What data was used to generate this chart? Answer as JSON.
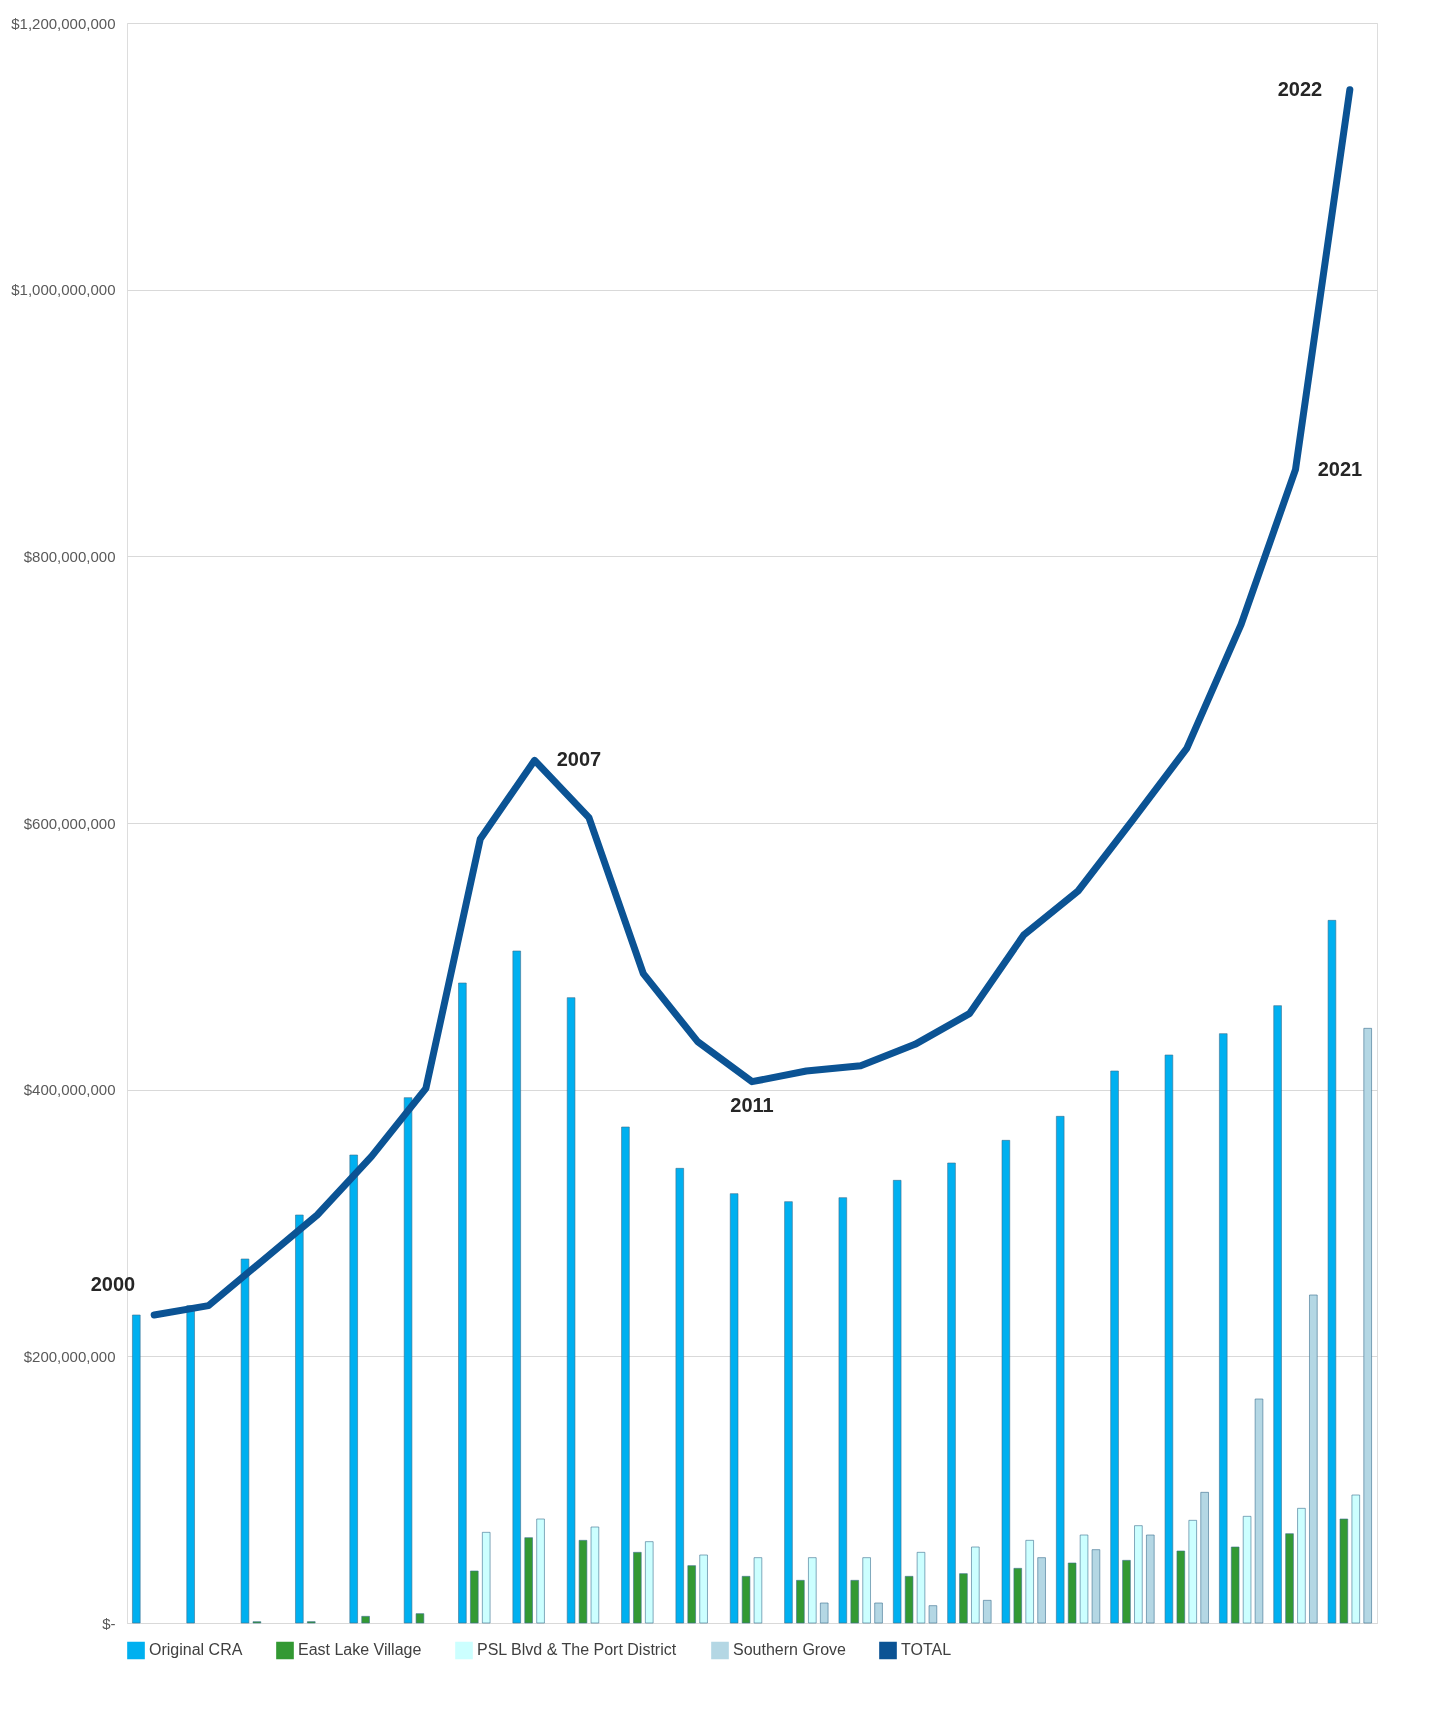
{
  "chart_data": {
    "type": "bar",
    "categories": [
      null,
      null,
      null,
      null,
      null,
      null,
      null,
      null,
      null,
      null,
      null,
      null,
      null,
      null,
      null,
      null,
      null,
      null,
      null,
      null,
      null,
      null,
      null
    ],
    "series": [
      {
        "name": "Original CRA",
        "color": "#00b0f0",
        "values": [
          231000000,
          238000000,
          273000000,
          306000000,
          351000000,
          394000000,
          480000000,
          504000000,
          469000000,
          372000000,
          341000000,
          322000000,
          316000000,
          319000000,
          332000000,
          345000000,
          362000000,
          380000000,
          414000000,
          426000000,
          442000000,
          463000000,
          527000000
        ]
      },
      {
        "name": "East Lake Village",
        "color": "#339933",
        "values": [
          null,
          null,
          1000000,
          1000000,
          5000000,
          7000000,
          39000000,
          64000000,
          62000000,
          53000000,
          43000000,
          35000000,
          32000000,
          32000000,
          35000000,
          37000000,
          41000000,
          45000000,
          47000000,
          54000000,
          57000000,
          67000000,
          78000000
        ]
      },
      {
        "name": "PSL Blvd & The Port District",
        "color": "#ccffff",
        "values": [
          null,
          null,
          null,
          null,
          null,
          null,
          68000000,
          78000000,
          72000000,
          61000000,
          51000000,
          49000000,
          49000000,
          49000000,
          53000000,
          57000000,
          62000000,
          66000000,
          73000000,
          77000000,
          80000000,
          86000000,
          96000000
        ]
      },
      {
        "name": "Southern Grove",
        "color": "#b4d7e4",
        "values": [
          null,
          null,
          null,
          null,
          null,
          null,
          null,
          null,
          null,
          null,
          null,
          null,
          15000000,
          15000000,
          13000000,
          17000000,
          49000000,
          55000000,
          66000000,
          98000000,
          168000000,
          246000000,
          446000000
        ]
      },
      {
        "name": "TOTAL",
        "type": "line",
        "color": "#0b5394",
        "values": [
          231000000,
          238000000,
          272000000,
          306000000,
          350000000,
          401000000,
          588000000,
          647000000,
          604000000,
          487000000,
          436000000,
          406000000,
          414000000,
          418000000,
          434000000,
          457000000,
          516000000,
          549000000,
          602000000,
          656000000,
          749000000,
          865000000,
          1150000000
        ]
      }
    ],
    "ylim": [
      0,
      1200000000
    ],
    "yticks": [
      {
        "value": 0,
        "label": "$-"
      },
      {
        "value": 200000000,
        "label": "$200,000,000"
      },
      {
        "value": 400000000,
        "label": "$400,000,000"
      },
      {
        "value": 600000000,
        "label": "$600,000,000"
      },
      {
        "value": 800000000,
        "label": "$800,000,000"
      },
      {
        "value": 1000000000,
        "label": "$1,000,000,000"
      },
      {
        "value": 1200000000,
        "label": "$1,200,000,000"
      }
    ],
    "annotations": [
      "2000",
      "2007",
      "2011",
      "2021",
      "2022"
    ],
    "grid": "y",
    "legend": "bottom",
    "tick_labels": "y",
    "line_style": "solid",
    "marker": "none"
  }
}
